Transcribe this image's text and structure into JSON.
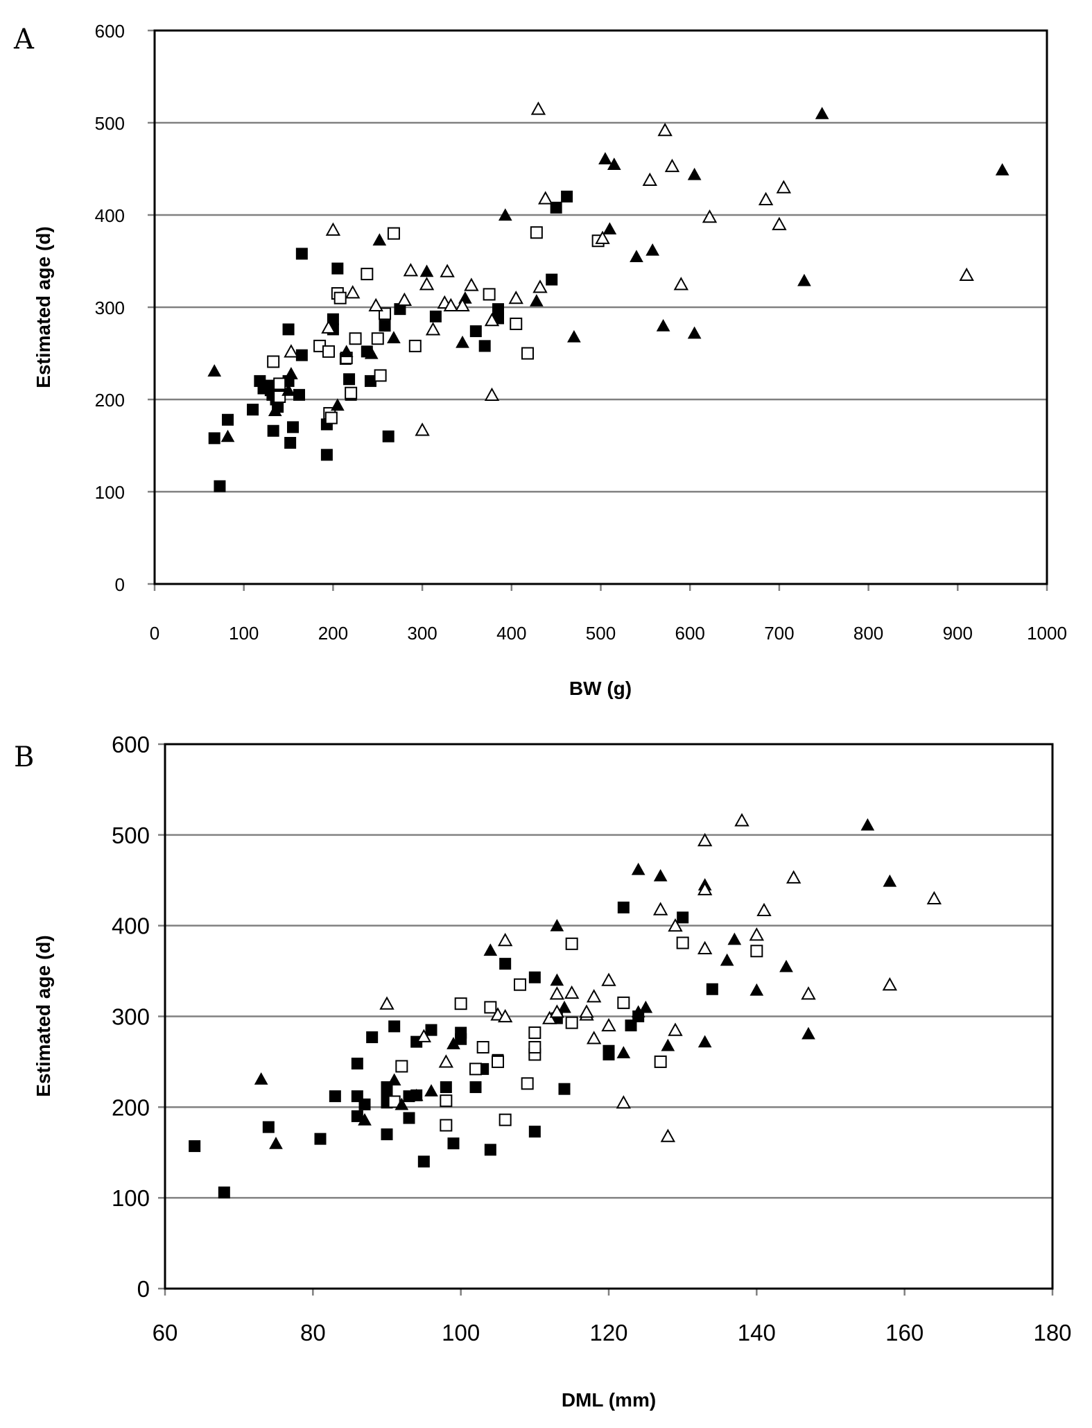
{
  "legend": {
    "symbols": [
      "filled-square",
      "open-square",
      "filled-triangle",
      "open-triangle"
    ]
  },
  "chart_data": [
    {
      "type": "scatter",
      "panel_label": "A",
      "xlabel": "BW (g)",
      "ylabel": "Estimated age (d)",
      "xlim": [
        0,
        1000
      ],
      "ylim": [
        0,
        600
      ],
      "xticks": [
        0,
        100,
        200,
        300,
        400,
        500,
        600,
        700,
        800,
        900,
        1000
      ],
      "yticks": [
        0,
        100,
        200,
        300,
        400,
        500,
        600
      ],
      "grid": "horizontal",
      "series": [
        {
          "marker": "filled-square",
          "points": [
            [
              67,
              158
            ],
            [
              73,
              106
            ],
            [
              82,
              178
            ],
            [
              110,
              189
            ],
            [
              118,
              220
            ],
            [
              122,
              212
            ],
            [
              128,
              215
            ],
            [
              130,
              210
            ],
            [
              132,
              205
            ],
            [
              133,
              166
            ],
            [
              136,
              200
            ],
            [
              138,
              192
            ],
            [
              140,
              208
            ],
            [
              150,
              220
            ],
            [
              150,
              276
            ],
            [
              152,
              153
            ],
            [
              155,
              170
            ],
            [
              162,
              205
            ],
            [
              165,
              248
            ],
            [
              165,
              358
            ],
            [
              193,
              140
            ],
            [
              193,
              173
            ],
            [
              200,
              287
            ],
            [
              200,
              276
            ],
            [
              205,
              342
            ],
            [
              214,
              244
            ],
            [
              218,
              222
            ],
            [
              220,
              205
            ],
            [
              238,
              252
            ],
            [
              242,
              220
            ],
            [
              258,
              280
            ],
            [
              262,
              160
            ],
            [
              275,
              298
            ],
            [
              315,
              290
            ],
            [
              360,
              274
            ],
            [
              370,
              258
            ],
            [
              385,
              298
            ],
            [
              385,
              288
            ],
            [
              445,
              330
            ],
            [
              450,
              408
            ],
            [
              462,
              420
            ]
          ]
        },
        {
          "marker": "open-square",
          "points": [
            [
              133,
              241
            ],
            [
              140,
              217
            ],
            [
              140,
              203
            ],
            [
              185,
              258
            ],
            [
              195,
              252
            ],
            [
              196,
              185
            ],
            [
              198,
              180
            ],
            [
              205,
              315
            ],
            [
              208,
              310
            ],
            [
              215,
              245
            ],
            [
              220,
              207
            ],
            [
              225,
              266
            ],
            [
              238,
              336
            ],
            [
              250,
              266
            ],
            [
              253,
              226
            ],
            [
              258,
              293
            ],
            [
              268,
              380
            ],
            [
              292,
              258
            ],
            [
              375,
              314
            ],
            [
              405,
              282
            ],
            [
              418,
              250
            ],
            [
              428,
              381
            ],
            [
              497,
              372
            ]
          ]
        },
        {
          "marker": "filled-triangle",
          "points": [
            [
              67,
              231
            ],
            [
              82,
              160
            ],
            [
              135,
              188
            ],
            [
              150,
              210
            ],
            [
              153,
              228
            ],
            [
              205,
              194
            ],
            [
              215,
              252
            ],
            [
              252,
              373
            ],
            [
              243,
              250
            ],
            [
              268,
              267
            ],
            [
              305,
              339
            ],
            [
              345,
              262
            ],
            [
              348,
              310
            ],
            [
              393,
              400
            ],
            [
              428,
              307
            ],
            [
              470,
              268
            ],
            [
              505,
              461
            ],
            [
              515,
              455
            ],
            [
              510,
              385
            ],
            [
              540,
              355
            ],
            [
              558,
              362
            ],
            [
              570,
              280
            ],
            [
              605,
              444
            ],
            [
              605,
              272
            ],
            [
              728,
              329
            ],
            [
              748,
              510
            ],
            [
              950,
              449
            ]
          ]
        },
        {
          "marker": "open-triangle",
          "points": [
            [
              153,
              252
            ],
            [
              195,
              278
            ],
            [
              200,
              384
            ],
            [
              222,
              316
            ],
            [
              248,
              302
            ],
            [
              280,
              308
            ],
            [
              287,
              340
            ],
            [
              300,
              167
            ],
            [
              305,
              325
            ],
            [
              312,
              276
            ],
            [
              325,
              305
            ],
            [
              328,
              339
            ],
            [
              332,
              302
            ],
            [
              345,
              302
            ],
            [
              355,
              324
            ],
            [
              378,
              286
            ],
            [
              378,
              205
            ],
            [
              405,
              310
            ],
            [
              430,
              515
            ],
            [
              432,
              322
            ],
            [
              438,
              418
            ],
            [
              502,
              375
            ],
            [
              555,
              438
            ],
            [
              572,
              492
            ],
            [
              580,
              453
            ],
            [
              590,
              325
            ],
            [
              622,
              398
            ],
            [
              685,
              417
            ],
            [
              700,
              390
            ],
            [
              705,
              430
            ],
            [
              910,
              335
            ]
          ]
        }
      ]
    },
    {
      "type": "scatter",
      "panel_label": "B",
      "xlabel": "DML (mm)",
      "ylabel": "Estimated age (d)",
      "xlim": [
        60,
        180
      ],
      "ylim": [
        0,
        600
      ],
      "xticks": [
        60,
        80,
        100,
        120,
        140,
        160,
        180
      ],
      "yticks": [
        0,
        100,
        200,
        300,
        400,
        500,
        600
      ],
      "grid": "horizontal",
      "series": [
        {
          "marker": "filled-square",
          "points": [
            [
              64,
              157
            ],
            [
              68,
              106
            ],
            [
              74,
              178
            ],
            [
              81,
              165
            ],
            [
              83,
              212
            ],
            [
              86,
              248
            ],
            [
              86,
              190
            ],
            [
              86,
              212
            ],
            [
              87,
              203
            ],
            [
              88,
              277
            ],
            [
              90,
              170
            ],
            [
              90,
              222
            ],
            [
              90,
              213
            ],
            [
              90,
              205
            ],
            [
              91,
              289
            ],
            [
              93,
              188
            ],
            [
              93,
              212
            ],
            [
              94,
              272
            ],
            [
              94,
              213
            ],
            [
              95,
              140
            ],
            [
              96,
              285
            ],
            [
              98,
              222
            ],
            [
              99,
              160
            ],
            [
              100,
              282
            ],
            [
              100,
              275
            ],
            [
              102,
              222
            ],
            [
              103,
              242
            ],
            [
              104,
              153
            ],
            [
              105,
              252
            ],
            [
              106,
              358
            ],
            [
              110,
              343
            ],
            [
              110,
              173
            ],
            [
              113,
              298
            ],
            [
              114,
              220
            ],
            [
              120,
              258
            ],
            [
              120,
              262
            ],
            [
              122,
              420
            ],
            [
              123,
              290
            ],
            [
              124,
              300
            ],
            [
              130,
              409
            ],
            [
              134,
              330
            ]
          ]
        },
        {
          "marker": "open-square",
          "points": [
            [
              91,
              206
            ],
            [
              92,
              245
            ],
            [
              98,
              207
            ],
            [
              98,
              180
            ],
            [
              100,
              314
            ],
            [
              102,
              242
            ],
            [
              103,
              266
            ],
            [
              104,
              310
            ],
            [
              105,
              250
            ],
            [
              106,
              186
            ],
            [
              108,
              335
            ],
            [
              109,
              226
            ],
            [
              110,
              282
            ],
            [
              110,
              258
            ],
            [
              110,
              266
            ],
            [
              115,
              380
            ],
            [
              115,
              293
            ],
            [
              122,
              315
            ],
            [
              127,
              250
            ],
            [
              130,
              381
            ],
            [
              140,
              372
            ]
          ]
        },
        {
          "marker": "filled-triangle",
          "points": [
            [
              73,
              231
            ],
            [
              75,
              160
            ],
            [
              87,
              186
            ],
            [
              91,
              230
            ],
            [
              92,
              203
            ],
            [
              94,
              213
            ],
            [
              96,
              218
            ],
            [
              99,
              270
            ],
            [
              104,
              373
            ],
            [
              113,
              400
            ],
            [
              113,
              340
            ],
            [
              114,
              310
            ],
            [
              122,
              260
            ],
            [
              124,
              462
            ],
            [
              124,
              305
            ],
            [
              125,
              310
            ],
            [
              127,
              455
            ],
            [
              128,
              268
            ],
            [
              133,
              445
            ],
            [
              133,
              272
            ],
            [
              136,
              362
            ],
            [
              137,
              385
            ],
            [
              140,
              329
            ],
            [
              144,
              355
            ],
            [
              147,
              281
            ],
            [
              155,
              511
            ],
            [
              158,
              449
            ]
          ]
        },
        {
          "marker": "open-triangle",
          "points": [
            [
              90,
              314
            ],
            [
              95,
              278
            ],
            [
              98,
              250
            ],
            [
              105,
              302
            ],
            [
              106,
              384
            ],
            [
              106,
              300
            ],
            [
              112,
              298
            ],
            [
              113,
              325
            ],
            [
              113,
              305
            ],
            [
              115,
              326
            ],
            [
              117,
              302
            ],
            [
              117,
              305
            ],
            [
              118,
              276
            ],
            [
              118,
              322
            ],
            [
              120,
              340
            ],
            [
              120,
              290
            ],
            [
              122,
              205
            ],
            [
              127,
              418
            ],
            [
              128,
              168
            ],
            [
              129,
              400
            ],
            [
              129,
              285
            ],
            [
              133,
              494
            ],
            [
              133,
              440
            ],
            [
              133,
              375
            ],
            [
              138,
              516
            ],
            [
              140,
              390
            ],
            [
              141,
              417
            ],
            [
              145,
              453
            ],
            [
              147,
              325
            ],
            [
              158,
              335
            ],
            [
              164,
              430
            ]
          ]
        }
      ]
    }
  ]
}
